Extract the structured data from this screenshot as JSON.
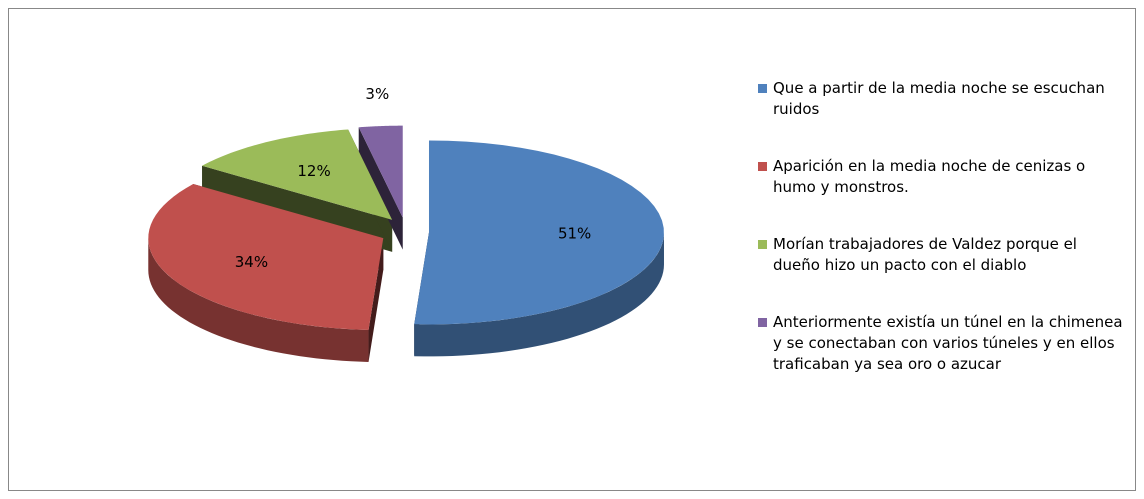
{
  "chart_data": {
    "type": "pie",
    "categories": [
      "Que a partir de la media noche se escuchan ruidos",
      "Aparición en la media noche de cenizas o humo y monstros.",
      "Morían trabajadores de Valdez porque el dueño hizo un pacto con el diablo",
      "Anteriormente existía un túnel en la chimenea y se conectaban con varios túneles y en ellos traficaban ya sea oro o azucar"
    ],
    "values": [
      51,
      34,
      12,
      3
    ],
    "value_labels": [
      "51%",
      "34%",
      "12%",
      "3%"
    ],
    "colors": [
      "#4f81bd",
      "#c0504d",
      "#9bbb59",
      "#8064a2"
    ],
    "legend": "right"
  }
}
